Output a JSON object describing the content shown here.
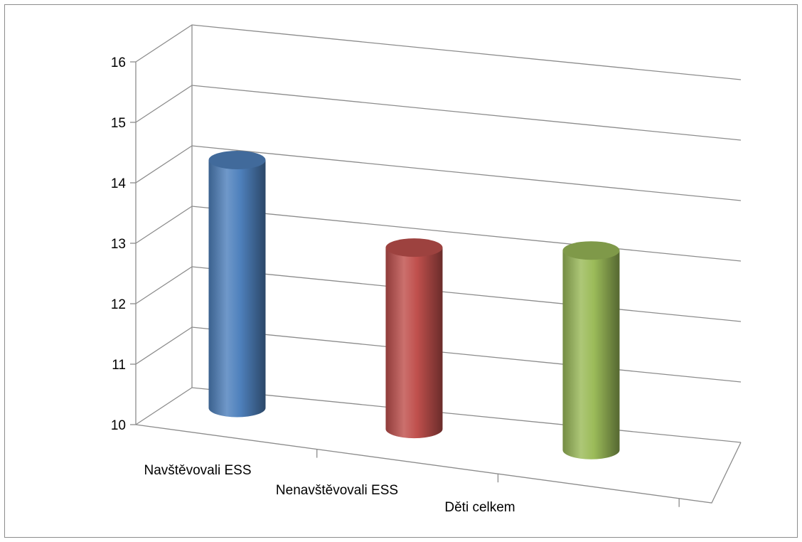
{
  "chart_data": {
    "type": "bar",
    "style": "3d-cylinder",
    "categories": [
      "Navštěvovali ESS",
      "Nenavštěvovali ESS",
      "Děti celkem"
    ],
    "values": [
      14.1,
      13.0,
      13.3
    ],
    "colors": [
      "#4f81bd",
      "#c0504d",
      "#9bbb59"
    ],
    "ylim": [
      10,
      16
    ],
    "yticks": [
      10,
      11,
      12,
      13,
      14,
      15,
      16
    ],
    "grid": true,
    "legend": "none",
    "title": "",
    "xlabel": "",
    "ylabel": ""
  }
}
